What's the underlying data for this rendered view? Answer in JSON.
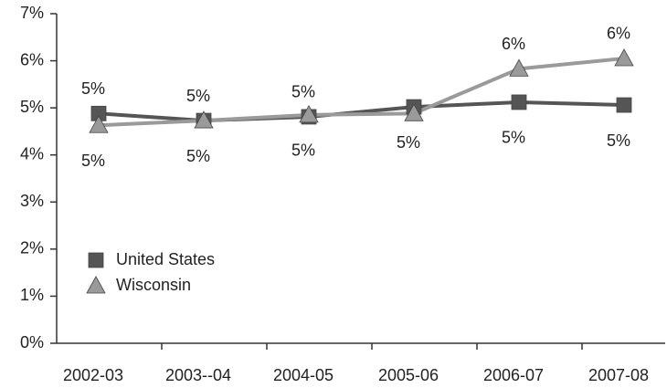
{
  "chart_data": {
    "type": "line",
    "categories": [
      "2002-03",
      "2003--04",
      "2004-05",
      "2005-06",
      "2006-07",
      "2007-08"
    ],
    "series": [
      {
        "name": "United States",
        "color": "#555555",
        "marker": "square",
        "values": [
          4.88,
          4.73,
          4.81,
          5.02,
          5.12,
          5.06
        ],
        "value_labels": [
          "5%",
          "5%",
          "5%",
          "5%",
          "5%",
          "5%"
        ]
      },
      {
        "name": "Wisconsin",
        "color": "#9a9a9a",
        "marker": "triangle",
        "values": [
          4.63,
          4.73,
          4.85,
          4.88,
          5.83,
          6.05
        ],
        "value_labels": [
          "5%",
          "5%",
          "5%",
          null,
          "6%",
          "6%"
        ]
      }
    ],
    "ylim": [
      0,
      7
    ],
    "yticks": [
      {
        "value": 0,
        "label": "0%"
      },
      {
        "value": 1,
        "label": "1%"
      },
      {
        "value": 2,
        "label": "2%"
      },
      {
        "value": 3,
        "label": "3%"
      },
      {
        "value": 4,
        "label": "4%"
      },
      {
        "value": 5,
        "label": "5%"
      },
      {
        "value": 6,
        "label": "6%"
      },
      {
        "value": 7,
        "label": "7%"
      }
    ],
    "grid": false,
    "legend": "lower left"
  }
}
